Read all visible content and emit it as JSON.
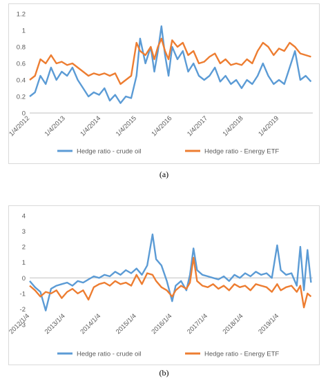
{
  "chart_data": [
    {
      "type": "line",
      "ylim": [
        0,
        1.2
      ],
      "yticks": [
        "0",
        "0.2",
        "0.4",
        "0.6",
        "0.8",
        "1",
        "1.2"
      ],
      "xticks": [
        "1/4/2012",
        "1/4/2013",
        "1/4/2014",
        "1/4/2015",
        "1/4/2016",
        "1/4/2017",
        "1/4/2018",
        "1/4/2019"
      ],
      "grid": false,
      "legend_position": "bottom",
      "series": [
        {
          "name": "Hedge ratio - crude oil",
          "color": "#5b9bd5",
          "points": [
            [
              2012.0,
              0.2
            ],
            [
              2012.15,
              0.25
            ],
            [
              2012.3,
              0.45
            ],
            [
              2012.45,
              0.35
            ],
            [
              2012.6,
              0.55
            ],
            [
              2012.75,
              0.4
            ],
            [
              2012.9,
              0.5
            ],
            [
              2013.05,
              0.45
            ],
            [
              2013.2,
              0.55
            ],
            [
              2013.35,
              0.4
            ],
            [
              2013.5,
              0.3
            ],
            [
              2013.65,
              0.2
            ],
            [
              2013.8,
              0.25
            ],
            [
              2013.95,
              0.22
            ],
            [
              2014.1,
              0.3
            ],
            [
              2014.25,
              0.15
            ],
            [
              2014.4,
              0.22
            ],
            [
              2014.55,
              0.12
            ],
            [
              2014.7,
              0.2
            ],
            [
              2014.85,
              0.18
            ],
            [
              2015.0,
              0.45
            ],
            [
              2015.1,
              0.9
            ],
            [
              2015.25,
              0.6
            ],
            [
              2015.4,
              0.8
            ],
            [
              2015.5,
              0.5
            ],
            [
              2015.6,
              0.75
            ],
            [
              2015.7,
              1.05
            ],
            [
              2015.8,
              0.7
            ],
            [
              2015.9,
              0.45
            ],
            [
              2016.0,
              0.8
            ],
            [
              2016.15,
              0.65
            ],
            [
              2016.3,
              0.75
            ],
            [
              2016.45,
              0.5
            ],
            [
              2016.6,
              0.6
            ],
            [
              2016.75,
              0.45
            ],
            [
              2016.9,
              0.4
            ],
            [
              2017.05,
              0.45
            ],
            [
              2017.2,
              0.55
            ],
            [
              2017.35,
              0.38
            ],
            [
              2017.5,
              0.45
            ],
            [
              2017.65,
              0.35
            ],
            [
              2017.8,
              0.4
            ],
            [
              2017.95,
              0.3
            ],
            [
              2018.1,
              0.4
            ],
            [
              2018.25,
              0.35
            ],
            [
              2018.4,
              0.45
            ],
            [
              2018.55,
              0.6
            ],
            [
              2018.7,
              0.45
            ],
            [
              2018.85,
              0.35
            ],
            [
              2019.0,
              0.4
            ],
            [
              2019.15,
              0.35
            ],
            [
              2019.3,
              0.55
            ],
            [
              2019.45,
              0.75
            ],
            [
              2019.6,
              0.4
            ],
            [
              2019.75,
              0.45
            ],
            [
              2019.9,
              0.38
            ]
          ]
        },
        {
          "name": "Hedge ratio - Energy ETF",
          "color": "#ed7d31",
          "points": [
            [
              2012.0,
              0.4
            ],
            [
              2012.15,
              0.45
            ],
            [
              2012.3,
              0.65
            ],
            [
              2012.45,
              0.6
            ],
            [
              2012.6,
              0.7
            ],
            [
              2012.75,
              0.6
            ],
            [
              2012.9,
              0.62
            ],
            [
              2013.05,
              0.58
            ],
            [
              2013.2,
              0.6
            ],
            [
              2013.35,
              0.55
            ],
            [
              2013.5,
              0.5
            ],
            [
              2013.65,
              0.45
            ],
            [
              2013.8,
              0.48
            ],
            [
              2013.95,
              0.46
            ],
            [
              2014.1,
              0.48
            ],
            [
              2014.25,
              0.45
            ],
            [
              2014.4,
              0.48
            ],
            [
              2014.55,
              0.35
            ],
            [
              2014.7,
              0.4
            ],
            [
              2014.85,
              0.45
            ],
            [
              2015.0,
              0.85
            ],
            [
              2015.1,
              0.75
            ],
            [
              2015.25,
              0.7
            ],
            [
              2015.4,
              0.8
            ],
            [
              2015.5,
              0.65
            ],
            [
              2015.6,
              0.8
            ],
            [
              2015.7,
              0.9
            ],
            [
              2015.8,
              0.75
            ],
            [
              2015.9,
              0.65
            ],
            [
              2016.0,
              0.88
            ],
            [
              2016.15,
              0.8
            ],
            [
              2016.3,
              0.85
            ],
            [
              2016.45,
              0.7
            ],
            [
              2016.6,
              0.75
            ],
            [
              2016.75,
              0.6
            ],
            [
              2016.9,
              0.62
            ],
            [
              2017.05,
              0.68
            ],
            [
              2017.2,
              0.72
            ],
            [
              2017.35,
              0.6
            ],
            [
              2017.5,
              0.65
            ],
            [
              2017.65,
              0.58
            ],
            [
              2017.8,
              0.6
            ],
            [
              2017.95,
              0.58
            ],
            [
              2018.1,
              0.65
            ],
            [
              2018.25,
              0.6
            ],
            [
              2018.4,
              0.75
            ],
            [
              2018.55,
              0.85
            ],
            [
              2018.7,
              0.8
            ],
            [
              2018.85,
              0.7
            ],
            [
              2019.0,
              0.78
            ],
            [
              2019.15,
              0.75
            ],
            [
              2019.3,
              0.85
            ],
            [
              2019.45,
              0.8
            ],
            [
              2019.6,
              0.72
            ],
            [
              2019.75,
              0.7
            ],
            [
              2019.9,
              0.68
            ]
          ]
        }
      ]
    },
    {
      "type": "line",
      "ylim": [
        -3,
        4
      ],
      "yticks": [
        "-3",
        "-2",
        "-1",
        "0",
        "1",
        "2",
        "3",
        "4"
      ],
      "xticks": [
        "2012/1/4",
        "2013/1/4",
        "2014/1/4",
        "2015/1/4",
        "2016/1/4",
        "2017/1/4",
        "2018/1/4",
        "2019/1/4"
      ],
      "grid": false,
      "legend_position": "bottom",
      "series": [
        {
          "name": "Hedge ratio - crude oil",
          "color": "#5b9bd5",
          "points": [
            [
              2012.0,
              -0.2
            ],
            [
              2012.15,
              -0.6
            ],
            [
              2012.3,
              -0.9
            ],
            [
              2012.45,
              -2.1
            ],
            [
              2012.6,
              -0.7
            ],
            [
              2012.75,
              -0.5
            ],
            [
              2012.9,
              -0.4
            ],
            [
              2013.05,
              -0.3
            ],
            [
              2013.2,
              -0.5
            ],
            [
              2013.35,
              -0.2
            ],
            [
              2013.5,
              -0.3
            ],
            [
              2013.65,
              -0.1
            ],
            [
              2013.8,
              0.1
            ],
            [
              2013.95,
              0.0
            ],
            [
              2014.1,
              0.2
            ],
            [
              2014.25,
              0.1
            ],
            [
              2014.4,
              0.4
            ],
            [
              2014.55,
              0.2
            ],
            [
              2014.7,
              0.5
            ],
            [
              2014.85,
              0.3
            ],
            [
              2015.0,
              0.6
            ],
            [
              2015.15,
              0.2
            ],
            [
              2015.3,
              0.8
            ],
            [
              2015.45,
              2.8
            ],
            [
              2015.55,
              1.2
            ],
            [
              2015.7,
              0.8
            ],
            [
              2015.85,
              -0.2
            ],
            [
              2016.0,
              -1.5
            ],
            [
              2016.1,
              -0.5
            ],
            [
              2016.25,
              -0.2
            ],
            [
              2016.4,
              -0.8
            ],
            [
              2016.5,
              0.2
            ],
            [
              2016.6,
              1.9
            ],
            [
              2016.7,
              0.5
            ],
            [
              2016.85,
              0.2
            ],
            [
              2017.0,
              0.1
            ],
            [
              2017.15,
              0.0
            ],
            [
              2017.3,
              -0.1
            ],
            [
              2017.45,
              0.1
            ],
            [
              2017.6,
              -0.2
            ],
            [
              2017.75,
              0.2
            ],
            [
              2017.9,
              0.0
            ],
            [
              2018.05,
              0.3
            ],
            [
              2018.2,
              0.1
            ],
            [
              2018.35,
              0.4
            ],
            [
              2018.5,
              0.2
            ],
            [
              2018.65,
              0.3
            ],
            [
              2018.8,
              0.0
            ],
            [
              2018.95,
              2.1
            ],
            [
              2019.05,
              0.5
            ],
            [
              2019.2,
              0.2
            ],
            [
              2019.35,
              0.3
            ],
            [
              2019.5,
              -0.5
            ],
            [
              2019.6,
              2.0
            ],
            [
              2019.7,
              -0.8
            ],
            [
              2019.8,
              1.8
            ],
            [
              2019.9,
              -0.3
            ]
          ]
        },
        {
          "name": "Hedge ratio - Energy ETF",
          "color": "#ed7d31",
          "points": [
            [
              2012.0,
              -0.5
            ],
            [
              2012.15,
              -0.8
            ],
            [
              2012.3,
              -1.2
            ],
            [
              2012.45,
              -0.9
            ],
            [
              2012.6,
              -1.0
            ],
            [
              2012.75,
              -0.8
            ],
            [
              2012.9,
              -1.3
            ],
            [
              2013.05,
              -0.9
            ],
            [
              2013.2,
              -0.7
            ],
            [
              2013.35,
              -1.0
            ],
            [
              2013.5,
              -0.8
            ],
            [
              2013.65,
              -1.4
            ],
            [
              2013.8,
              -0.6
            ],
            [
              2013.95,
              -0.4
            ],
            [
              2014.1,
              -0.3
            ],
            [
              2014.25,
              -0.5
            ],
            [
              2014.4,
              -0.2
            ],
            [
              2014.55,
              -0.4
            ],
            [
              2014.7,
              -0.3
            ],
            [
              2014.85,
              -0.5
            ],
            [
              2015.0,
              0.2
            ],
            [
              2015.15,
              -0.4
            ],
            [
              2015.3,
              0.3
            ],
            [
              2015.45,
              0.2
            ],
            [
              2015.55,
              -0.2
            ],
            [
              2015.7,
              -0.6
            ],
            [
              2015.85,
              -0.8
            ],
            [
              2016.0,
              -1.2
            ],
            [
              2016.1,
              -0.8
            ],
            [
              2016.25,
              -0.5
            ],
            [
              2016.4,
              -0.7
            ],
            [
              2016.5,
              -0.3
            ],
            [
              2016.6,
              1.3
            ],
            [
              2016.7,
              -0.2
            ],
            [
              2016.85,
              -0.5
            ],
            [
              2017.0,
              -0.6
            ],
            [
              2017.15,
              -0.4
            ],
            [
              2017.3,
              -0.7
            ],
            [
              2017.45,
              -0.5
            ],
            [
              2017.6,
              -0.8
            ],
            [
              2017.75,
              -0.4
            ],
            [
              2017.9,
              -0.6
            ],
            [
              2018.05,
              -0.5
            ],
            [
              2018.2,
              -0.8
            ],
            [
              2018.35,
              -0.4
            ],
            [
              2018.5,
              -0.5
            ],
            [
              2018.65,
              -0.6
            ],
            [
              2018.8,
              -0.9
            ],
            [
              2018.95,
              -0.4
            ],
            [
              2019.05,
              -0.8
            ],
            [
              2019.2,
              -0.6
            ],
            [
              2019.35,
              -0.5
            ],
            [
              2019.5,
              -0.9
            ],
            [
              2019.6,
              -0.5
            ],
            [
              2019.7,
              -1.9
            ],
            [
              2019.8,
              -1.0
            ],
            [
              2019.9,
              -1.2
            ]
          ]
        }
      ]
    }
  ],
  "captions": [
    "(a)",
    "(b)"
  ]
}
